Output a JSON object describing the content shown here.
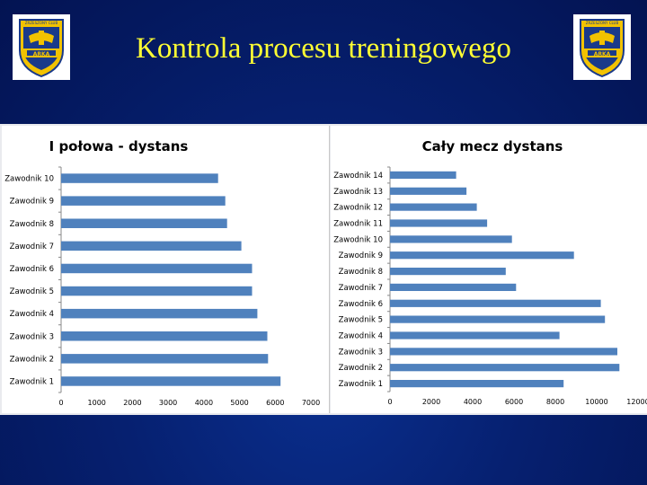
{
  "slide": {
    "title": "Kontrola procesu treningowego"
  },
  "logo": {
    "top_text": "ZRZESZONY CLUB",
    "name": "ARKA"
  },
  "colors": {
    "bar": "#4f81bd",
    "title": "#ffff33",
    "background": "#062070"
  },
  "chart_data": [
    {
      "type": "bar",
      "orientation": "horizontal",
      "title": "I połowa - dystans",
      "categories": [
        "Zawodnik 1",
        "Zawodnik 2",
        "Zawodnik 3",
        "Zawodnik 4",
        "Zawodnik 5",
        "Zawodnik 6",
        "Zawodnik 7",
        "Zawodnik 8",
        "Zawodnik 9",
        "Zawodnik 10"
      ],
      "values": [
        6150,
        5800,
        5780,
        5500,
        5350,
        5350,
        5050,
        4650,
        4600,
        4400
      ],
      "xlim": [
        0,
        7000
      ],
      "ticks": [
        0,
        1000,
        2000,
        3000,
        4000,
        5000,
        6000,
        7000
      ],
      "grid": false,
      "legend": "none"
    },
    {
      "type": "bar",
      "orientation": "horizontal",
      "title": "Cały mecz dystans",
      "categories": [
        "Zawodnik 1",
        "Zawodnik 2",
        "Zawodnik 3",
        "Zawodnik 4",
        "Zawodnik 5",
        "Zawodnik 6",
        "Zawodnik 7",
        "Zawodnik 8",
        "Zawodnik 9",
        "Zawodnik 10",
        "Zawodnik 11",
        "Zawodnik 12",
        "Zawodnik 13",
        "Zawodnik 14"
      ],
      "values": [
        8400,
        11100,
        11000,
        8200,
        10400,
        10200,
        6100,
        5600,
        8900,
        5900,
        4700,
        4200,
        3700,
        3200
      ],
      "xlim": [
        0,
        12000
      ],
      "ticks": [
        0,
        2000,
        4000,
        6000,
        8000,
        10000,
        12000
      ],
      "grid": false,
      "legend": "none"
    }
  ]
}
